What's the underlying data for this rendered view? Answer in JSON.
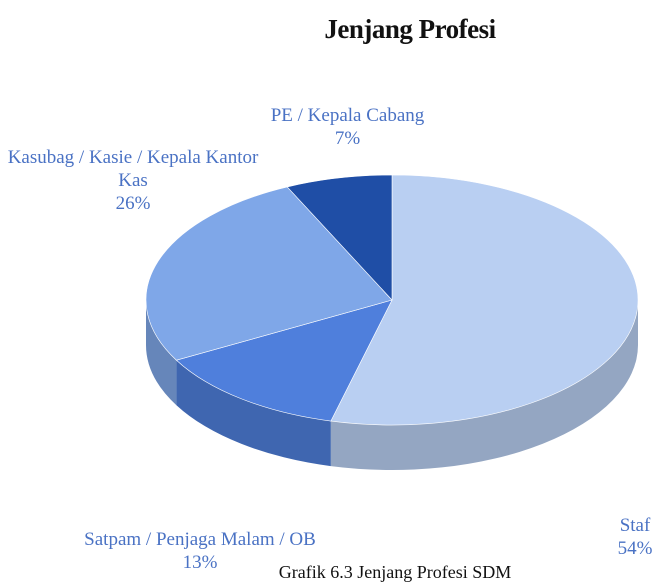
{
  "chart_data": {
    "type": "pie",
    "title": "Jenjang Profesi",
    "caption": "Grafik 6.3 Jenjang Profesi SDM",
    "categories": [
      "Staf",
      "Satpam / Penjaga Malam / OB",
      "Kasubag / Kasie / Kepala Kantor Kas",
      "PE / Kepala Cabang"
    ],
    "values": [
      54,
      13,
      26,
      7
    ],
    "value_labels": [
      "54%",
      "13%",
      "26%",
      "7%"
    ],
    "colors": [
      "#b9cff2",
      "#4f7fdc",
      "#7fa7e8",
      "#1f4ea6"
    ]
  }
}
